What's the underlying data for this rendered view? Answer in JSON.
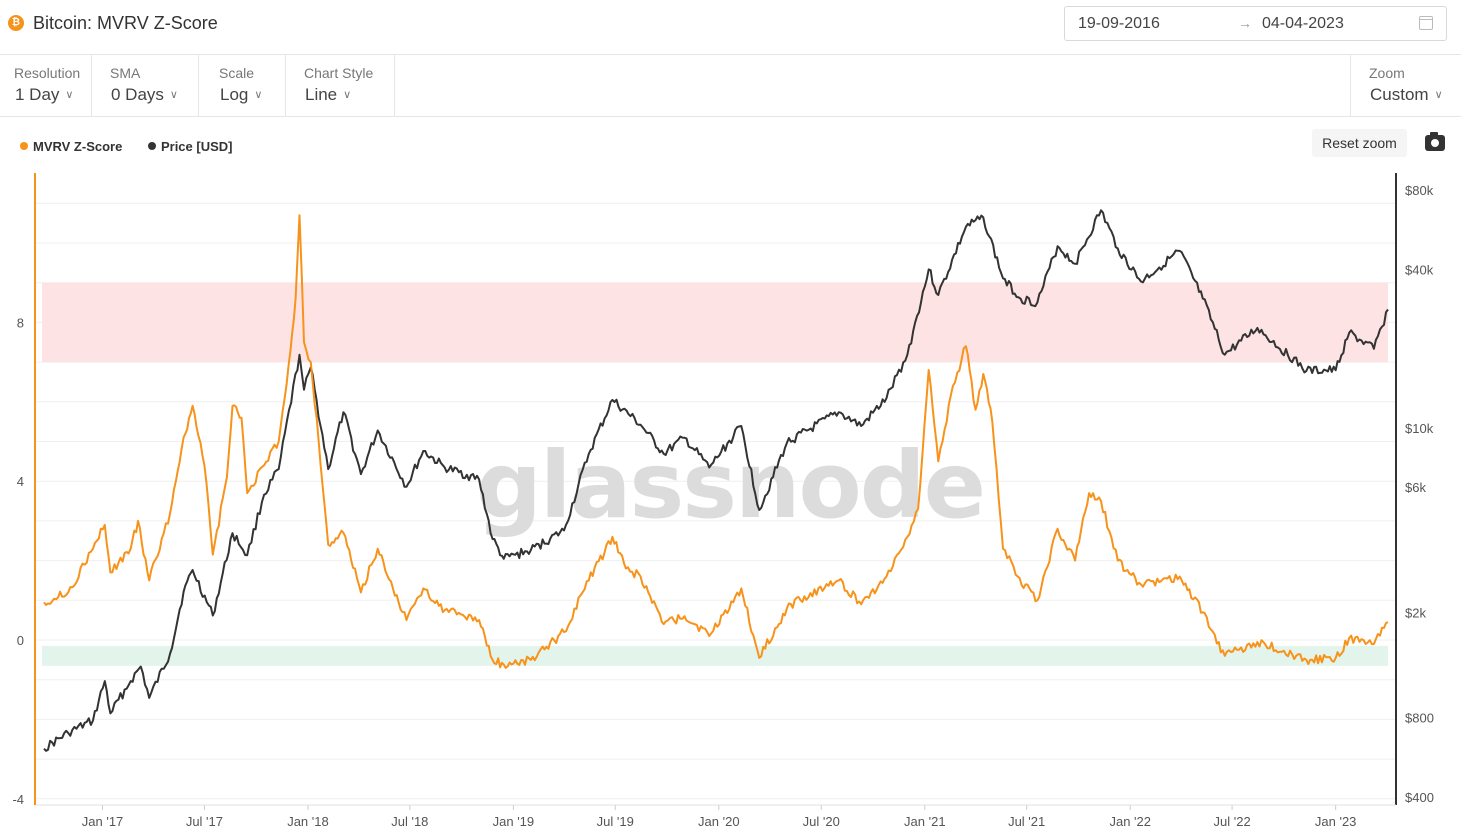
{
  "header": {
    "brand_icon": "bitcoin-icon",
    "title": "Bitcoin: MVRV Z-Score",
    "date_from": "19-09-2016",
    "date_arrow": "→",
    "date_to": "04-04-2023",
    "calendar_icon": "calendar-icon"
  },
  "controls": [
    {
      "label": "Resolution",
      "value": "1 Day"
    },
    {
      "label": "SMA",
      "value": "0 Days"
    },
    {
      "label": "Scale",
      "value": "Log"
    },
    {
      "label": "Chart Style",
      "value": "Line"
    }
  ],
  "zoom": {
    "label": "Zoom",
    "value": "Custom"
  },
  "toolbar": {
    "reset_zoom": "Reset zoom",
    "camera_icon": "camera-icon"
  },
  "legend": [
    {
      "name": "MVRV Z-Score",
      "color": "#f7931a"
    },
    {
      "name": "Price [USD]",
      "color": "#333333"
    }
  ],
  "watermark": "glassnode",
  "chart_data": {
    "type": "line",
    "title": "Bitcoin: MVRV Z-Score",
    "x_tick_labels": [
      "Jan '17",
      "Jul '17",
      "Jan '18",
      "Jul '18",
      "Jan '19",
      "Jul '19",
      "Jan '20",
      "Jul '20",
      "Jan '21",
      "Jul '21",
      "Jan '22",
      "Jul '22",
      "Jan '23"
    ],
    "x_range": [
      "2016-09-19",
      "2023-04-04"
    ],
    "y_left": {
      "ticks": [
        "-4",
        "0",
        "4",
        "8"
      ],
      "range": [
        -4,
        12
      ],
      "color": "#f7931a"
    },
    "y_right": {
      "ticks": [
        "$400",
        "$800",
        "$2k",
        "$6k",
        "$10k",
        "$40k",
        "$80k"
      ],
      "scale": "log",
      "range": [
        400,
        90000
      ],
      "color": "#333333"
    },
    "bands": [
      {
        "name": "overvalued zone",
        "y_from": 7.0,
        "y_to": 9.0,
        "color": "#fde3e3"
      },
      {
        "name": "undervalued zone",
        "y_from": -0.65,
        "y_to": -0.15,
        "color": "#e3f4ec"
      }
    ],
    "series": [
      {
        "name": "MVRV Z-Score",
        "axis": "left",
        "color": "#f7931a",
        "points": [
          [
            "2016-09-19",
            0.95
          ],
          [
            "2016-11-01",
            1.2
          ],
          [
            "2016-12-15",
            2.3
          ],
          [
            "2017-01-05",
            2.9
          ],
          [
            "2017-01-15",
            1.7
          ],
          [
            "2017-02-20",
            2.3
          ],
          [
            "2017-03-05",
            3.0
          ],
          [
            "2017-03-25",
            1.5
          ],
          [
            "2017-05-01",
            3.2
          ],
          [
            "2017-05-25",
            5.1
          ],
          [
            "2017-06-10",
            5.9
          ],
          [
            "2017-07-01",
            4.4
          ],
          [
            "2017-07-16",
            2.15
          ],
          [
            "2017-08-10",
            4.1
          ],
          [
            "2017-08-20",
            5.9
          ],
          [
            "2017-09-05",
            5.6
          ],
          [
            "2017-09-15",
            3.7
          ],
          [
            "2017-10-15",
            4.4
          ],
          [
            "2017-11-10",
            5.0
          ],
          [
            "2017-12-01",
            7.3
          ],
          [
            "2017-12-10",
            8.6
          ],
          [
            "2017-12-17",
            10.7
          ],
          [
            "2017-12-25",
            7.5
          ],
          [
            "2018-01-06",
            7.0
          ],
          [
            "2018-01-20",
            5.0
          ],
          [
            "2018-02-06",
            2.4
          ],
          [
            "2018-03-05",
            2.7
          ],
          [
            "2018-04-05",
            1.2
          ],
          [
            "2018-05-05",
            2.3
          ],
          [
            "2018-06-01",
            1.3
          ],
          [
            "2018-06-25",
            0.5
          ],
          [
            "2018-07-25",
            1.3
          ],
          [
            "2018-09-01",
            0.75
          ],
          [
            "2018-11-01",
            0.5
          ],
          [
            "2018-11-25",
            -0.5
          ],
          [
            "2018-12-15",
            -0.62
          ],
          [
            "2019-02-01",
            -0.5
          ],
          [
            "2019-04-01",
            0.2
          ],
          [
            "2019-05-15",
            1.5
          ],
          [
            "2019-06-26",
            2.6
          ],
          [
            "2019-07-20",
            1.8
          ],
          [
            "2019-08-15",
            1.6
          ],
          [
            "2019-09-25",
            0.4
          ],
          [
            "2019-11-01",
            0.6
          ],
          [
            "2019-12-15",
            0.1
          ],
          [
            "2020-02-10",
            1.3
          ],
          [
            "2020-03-13",
            -0.45
          ],
          [
            "2020-05-01",
            0.8
          ],
          [
            "2020-06-01",
            1.1
          ],
          [
            "2020-08-01",
            1.5
          ],
          [
            "2020-09-10",
            0.9
          ],
          [
            "2020-10-25",
            1.6
          ],
          [
            "2020-12-01",
            2.6
          ],
          [
            "2020-12-20",
            3.3
          ],
          [
            "2021-01-08",
            6.8
          ],
          [
            "2021-01-25",
            4.5
          ],
          [
            "2021-02-20",
            6.4
          ],
          [
            "2021-03-15",
            7.4
          ],
          [
            "2021-04-01",
            5.8
          ],
          [
            "2021-04-15",
            6.7
          ],
          [
            "2021-05-01",
            5.5
          ],
          [
            "2021-05-20",
            2.3
          ],
          [
            "2021-06-15",
            1.6
          ],
          [
            "2021-07-20",
            1.0
          ],
          [
            "2021-08-25",
            2.8
          ],
          [
            "2021-09-25",
            2.0
          ],
          [
            "2021-10-20",
            3.7
          ],
          [
            "2021-11-10",
            3.5
          ],
          [
            "2021-12-10",
            2.0
          ],
          [
            "2022-01-20",
            1.4
          ],
          [
            "2022-03-30",
            1.6
          ],
          [
            "2022-05-10",
            0.7
          ],
          [
            "2022-06-18",
            -0.4
          ],
          [
            "2022-08-15",
            -0.05
          ],
          [
            "2022-11-10",
            -0.5
          ],
          [
            "2023-01-01",
            -0.45
          ],
          [
            "2023-01-25",
            0.05
          ],
          [
            "2023-03-10",
            -0.1
          ],
          [
            "2023-04-04",
            0.45
          ]
        ]
      },
      {
        "name": "Price [USD]",
        "axis": "right",
        "color": "#333333",
        "points": [
          [
            "2016-09-19",
            610
          ],
          [
            "2016-11-01",
            700
          ],
          [
            "2016-12-15",
            780
          ],
          [
            "2017-01-05",
            1100
          ],
          [
            "2017-01-15",
            830
          ],
          [
            "2017-02-20",
            1100
          ],
          [
            "2017-03-10",
            1250
          ],
          [
            "2017-03-25",
            950
          ],
          [
            "2017-05-01",
            1400
          ],
          [
            "2017-05-25",
            2400
          ],
          [
            "2017-06-10",
            2900
          ],
          [
            "2017-07-16",
            1950
          ],
          [
            "2017-08-20",
            4000
          ],
          [
            "2017-09-15",
            3300
          ],
          [
            "2017-10-15",
            5600
          ],
          [
            "2017-11-10",
            7000
          ],
          [
            "2017-12-17",
            19000
          ],
          [
            "2017-12-25",
            14000
          ],
          [
            "2018-01-06",
            17000
          ],
          [
            "2018-02-06",
            7000
          ],
          [
            "2018-03-05",
            11500
          ],
          [
            "2018-04-05",
            6700
          ],
          [
            "2018-05-05",
            9800
          ],
          [
            "2018-06-25",
            6000
          ],
          [
            "2018-07-25",
            8200
          ],
          [
            "2018-09-01",
            7100
          ],
          [
            "2018-11-01",
            6400
          ],
          [
            "2018-11-25",
            3800
          ],
          [
            "2018-12-15",
            3200
          ],
          [
            "2019-02-01",
            3450
          ],
          [
            "2019-04-01",
            4100
          ],
          [
            "2019-05-15",
            8000
          ],
          [
            "2019-06-26",
            12800
          ],
          [
            "2019-08-15",
            10300
          ],
          [
            "2019-09-25",
            8000
          ],
          [
            "2019-11-01",
            9200
          ],
          [
            "2019-12-15",
            7100
          ],
          [
            "2020-02-10",
            10200
          ],
          [
            "2020-03-13",
            4900
          ],
          [
            "2020-05-01",
            8800
          ],
          [
            "2020-08-01",
            11500
          ],
          [
            "2020-09-10",
            10200
          ],
          [
            "2020-10-25",
            13000
          ],
          [
            "2020-12-01",
            19000
          ],
          [
            "2021-01-08",
            40000
          ],
          [
            "2021-01-25",
            32000
          ],
          [
            "2021-03-15",
            58000
          ],
          [
            "2021-04-15",
            63000
          ],
          [
            "2021-05-20",
            37000
          ],
          [
            "2021-06-20",
            31000
          ],
          [
            "2021-07-20",
            30000
          ],
          [
            "2021-08-25",
            49000
          ],
          [
            "2021-09-25",
            42000
          ],
          [
            "2021-11-10",
            67000
          ],
          [
            "2021-12-10",
            48000
          ],
          [
            "2022-01-20",
            36000
          ],
          [
            "2022-03-30",
            47000
          ],
          [
            "2022-05-10",
            31000
          ],
          [
            "2022-06-18",
            19000
          ],
          [
            "2022-08-15",
            24000
          ],
          [
            "2022-11-10",
            16500
          ],
          [
            "2023-01-01",
            16600
          ],
          [
            "2023-01-25",
            23000
          ],
          [
            "2023-03-10",
            20000
          ],
          [
            "2023-04-04",
            28200
          ]
        ]
      }
    ],
    "grid": true,
    "legend_position": "top-left"
  }
}
